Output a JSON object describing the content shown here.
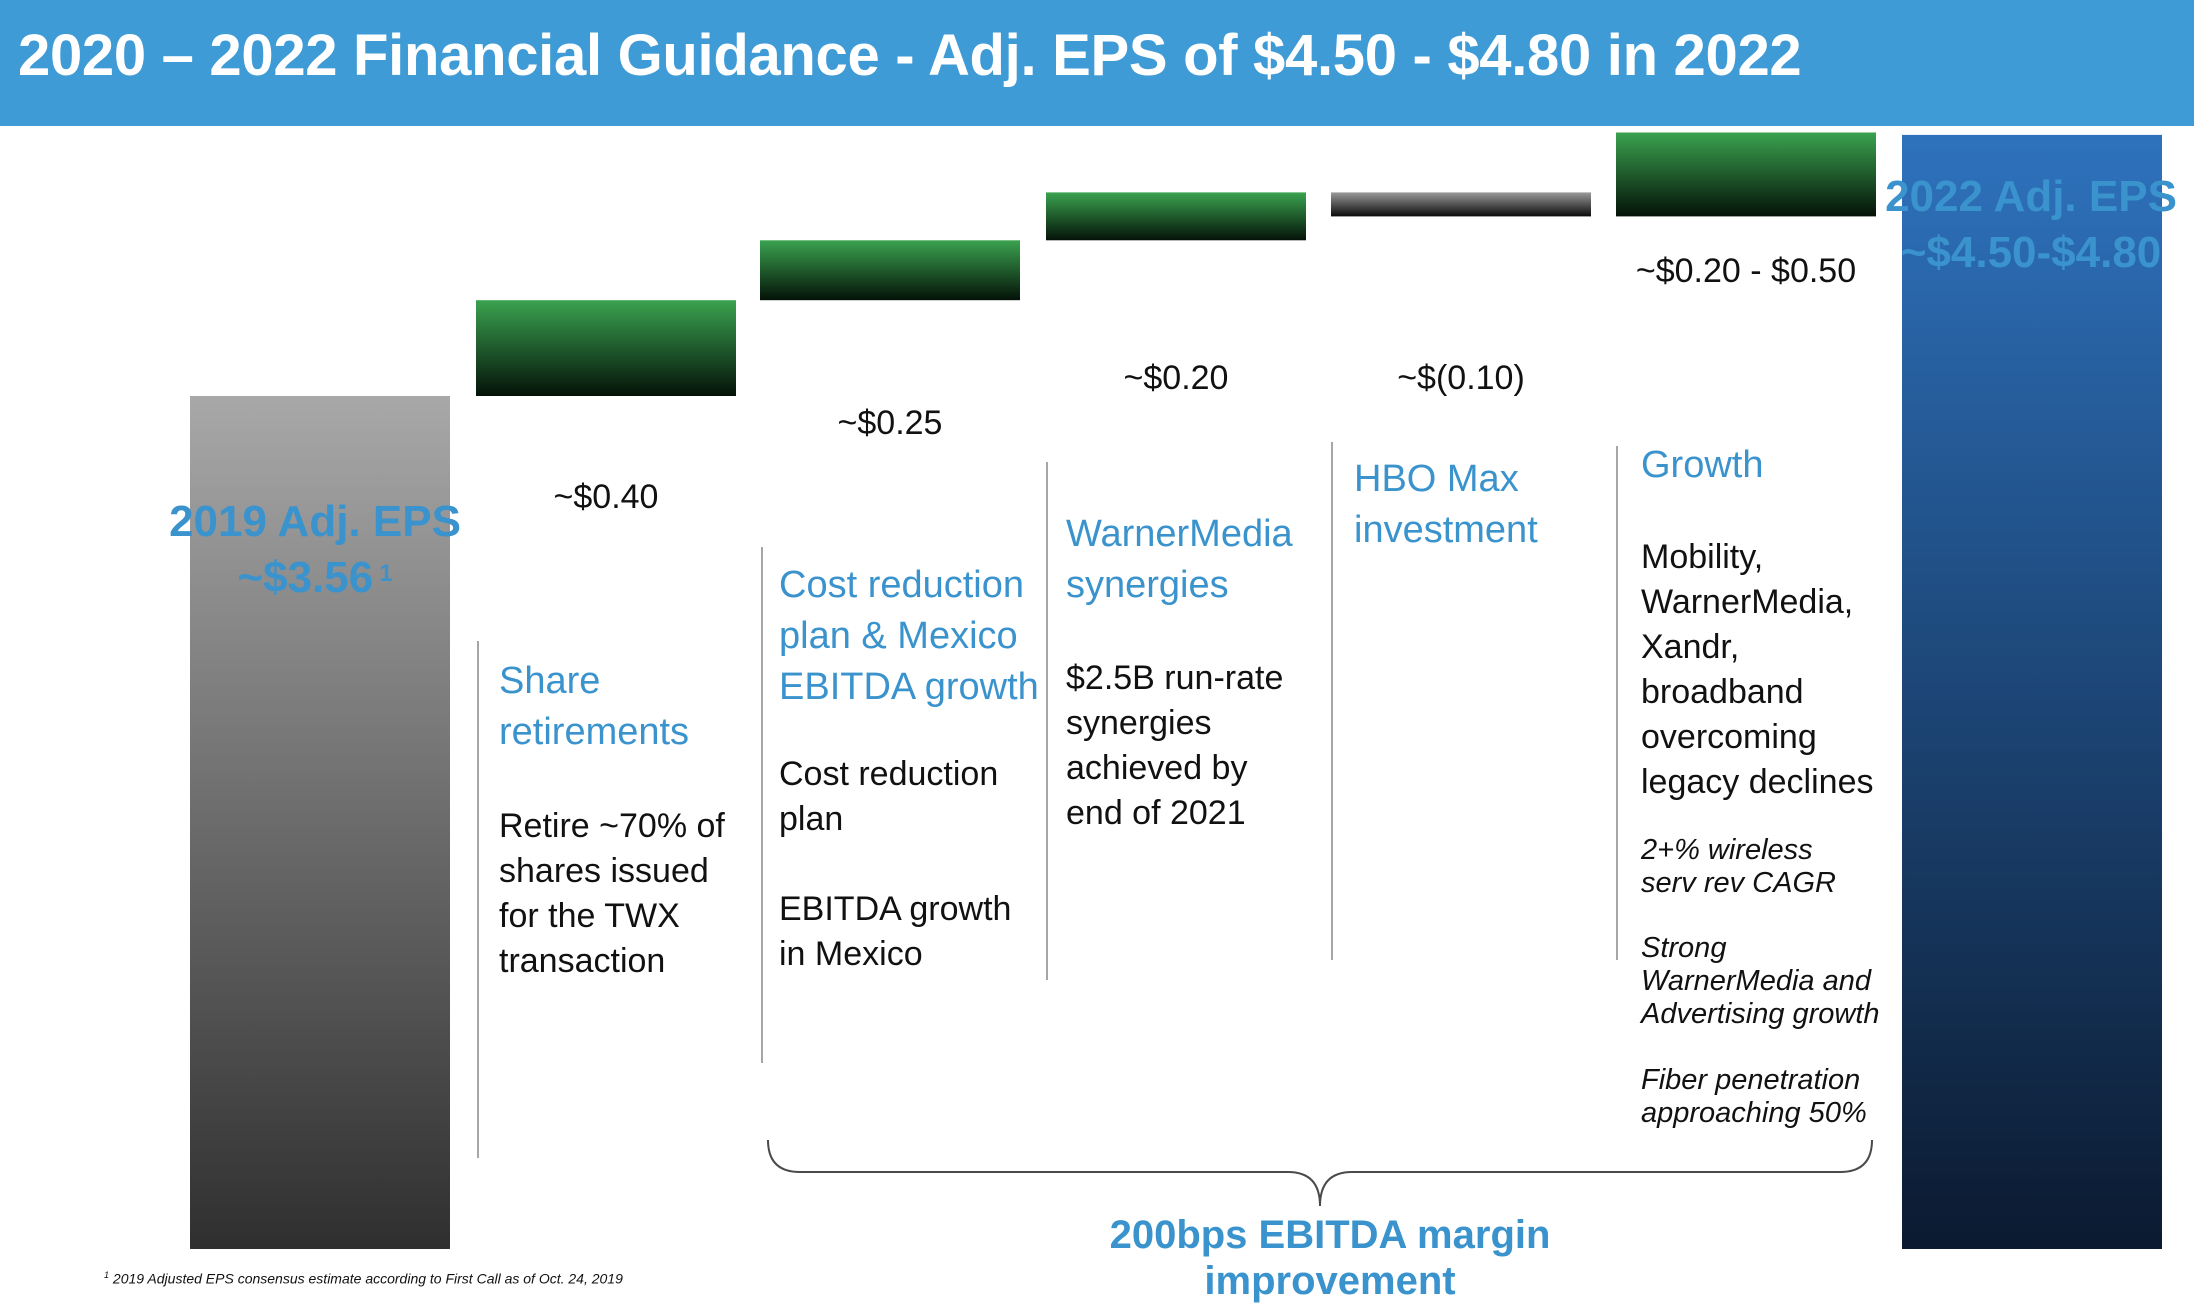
{
  "title": "2020 – 2022 Financial Guidance - Adj. EPS of $4.50 - $4.80 in 2022",
  "chart_data": {
    "type": "bar",
    "subtype": "waterfall",
    "unit": "$ per share",
    "categories": [
      "2019 Adj. EPS",
      "Share retirements",
      "Cost reduction plan & Mexico EBITDA growth",
      "WarnerMedia synergies",
      "HBO Max investment",
      "Growth",
      "2022 Adj. EPS"
    ],
    "values": [
      3.56,
      0.4,
      0.25,
      0.2,
      -0.1,
      0.35,
      4.65
    ],
    "value_labels": [
      "~$3.56",
      "~$0.40",
      "~$0.25",
      "~$0.20",
      "~$(0.10)",
      "~$0.20 - $0.50",
      "~$4.50-$4.80"
    ],
    "ranges": {
      "Growth": [
        0.2,
        0.5
      ],
      "2022 Adj. EPS": [
        4.5,
        4.8
      ]
    },
    "colors": {
      "start_top": "#a8a8a8",
      "start_bottom": "#2f2f2f",
      "up_top": "#3aa24f",
      "up_bottom": "#041208",
      "down_top": "#9a9a9a",
      "down_bottom": "#0a0a0a",
      "end_top": "#2e72bd",
      "end_bottom": "#0b1a30"
    }
  },
  "labels": {
    "start": {
      "line1": "2019 Adj. EPS",
      "line2": "~$3.56",
      "footnote_mark": "1"
    },
    "end": {
      "line1": "2022 Adj. EPS",
      "line2": "~$4.50-$4.80"
    }
  },
  "segments": {
    "share": {
      "value": "~$0.40",
      "heading": "Share\nretirements",
      "body": "Retire ~70% of\nshares issued\nfor the TWX\ntransaction"
    },
    "cost": {
      "value": "~$0.25",
      "heading": "Cost reduction\nplan & Mexico\nEBITDA growth",
      "body1": "Cost reduction\nplan",
      "body2": "EBITDA growth\nin Mexico"
    },
    "synergies": {
      "value": "~$0.20",
      "heading": "WarnerMedia\nsynergies",
      "body": "$2.5B run-rate\nsynergies\nachieved by\nend of 2021"
    },
    "hbo": {
      "value": "~$(0.10)",
      "heading": "HBO Max\ninvestment"
    },
    "growth": {
      "value": "~$0.20 - $0.50",
      "heading": "Growth",
      "body": "Mobility,\nWarnerMedia,\nXandr,\nbroadband\novercoming\nlegacy declines",
      "note1": "2+% wireless\n serv rev CAGR",
      "note2": "Strong\nWarnerMedia and\nAdvertising growth",
      "note3": "Fiber penetration\napproaching 50%"
    }
  },
  "brace_label": "200bps EBITDA margin improvement",
  "footnote": {
    "mark": "1",
    "text": " 2019  Adjusted EPS consensus estimate according to First Call as of Oct. 24, 2019"
  }
}
